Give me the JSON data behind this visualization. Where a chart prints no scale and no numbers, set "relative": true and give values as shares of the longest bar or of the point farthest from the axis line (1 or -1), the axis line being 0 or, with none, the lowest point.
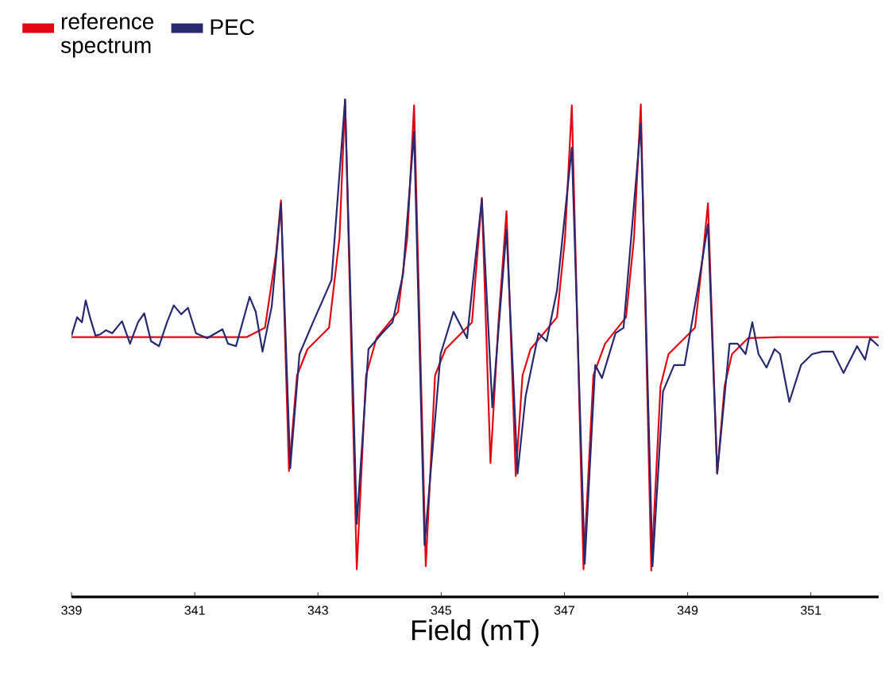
{
  "chart_data": {
    "type": "line",
    "relative": true,
    "xlabel": "Field (mT)",
    "xlim": [
      339,
      352.1
    ],
    "xticks": [
      339,
      341,
      343,
      345,
      347,
      349,
      351
    ],
    "legend": "top left",
    "series": [
      {
        "name": "reference spectrum",
        "color": "#e30613",
        "x": [
          339.0,
          341.84,
          342.14,
          342.32,
          342.4,
          342.53,
          342.66,
          342.83,
          343.18,
          343.35,
          343.44,
          343.63,
          343.78,
          343.95,
          344.3,
          344.45,
          344.56,
          344.75,
          344.9,
          345.07,
          345.5,
          345.66,
          345.8,
          345.93,
          346.06,
          346.21,
          346.32,
          346.45,
          346.88,
          347.01,
          347.12,
          347.31,
          347.47,
          347.66,
          348.0,
          348.13,
          348.24,
          348.41,
          348.56,
          348.69,
          349.12,
          349.25,
          349.33,
          349.48,
          349.6,
          349.72,
          349.98,
          350.5,
          352.1
        ],
        "values": [
          0.522,
          0.522,
          0.541,
          0.69,
          0.797,
          0.253,
          0.445,
          0.498,
          0.541,
          0.722,
          1,
          0.056,
          0.445,
          0.52,
          0.573,
          0.722,
          0.988,
          0.062,
          0.445,
          0.498,
          0.552,
          0.802,
          0.269,
          0.552,
          0.775,
          0.243,
          0.445,
          0.498,
          0.562,
          0.722,
          0.988,
          0.056,
          0.445,
          0.509,
          0.562,
          0.722,
          0.99,
          0.053,
          0.424,
          0.488,
          0.541,
          0.69,
          0.791,
          0.248,
          0.424,
          0.488,
          0.52,
          0.522,
          0.522
        ]
      },
      {
        "name": "PEC",
        "color": "#272a6e",
        "x": [
          339.0,
          339.09,
          339.17,
          339.23,
          339.3,
          339.39,
          339.47,
          339.56,
          339.66,
          339.82,
          339.95,
          340.08,
          340.18,
          340.29,
          340.42,
          340.55,
          340.66,
          340.78,
          340.89,
          341.02,
          341.2,
          341.45,
          341.54,
          341.67,
          341.89,
          341.99,
          342.1,
          342.25,
          342.4,
          342.55,
          342.7,
          342.92,
          343.09,
          343.22,
          343.44,
          343.63,
          343.82,
          344.04,
          344.21,
          344.38,
          344.56,
          344.73,
          344.99,
          345.2,
          345.42,
          345.5,
          345.66,
          345.83,
          346.06,
          346.24,
          346.37,
          346.58,
          346.71,
          346.88,
          347.12,
          347.33,
          347.5,
          347.61,
          347.83,
          347.96,
          348.24,
          348.43,
          348.6,
          348.78,
          348.95,
          349.16,
          349.33,
          349.48,
          349.68,
          349.81,
          349.94,
          350.05,
          350.15,
          350.28,
          350.41,
          350.5,
          350.65,
          350.84,
          351.02,
          351.19,
          351.36,
          351.53,
          351.75,
          351.88,
          351.96,
          352.1
        ],
        "values": [
          0.525,
          0.562,
          0.552,
          0.596,
          0.562,
          0.525,
          0.528,
          0.536,
          0.53,
          0.554,
          0.509,
          0.552,
          0.57,
          0.514,
          0.504,
          0.552,
          0.586,
          0.568,
          0.581,
          0.53,
          0.52,
          0.538,
          0.509,
          0.504,
          0.603,
          0.573,
          0.493,
          0.584,
          0.791,
          0.259,
          0.488,
          0.552,
          0.6,
          0.637,
          0.999,
          0.147,
          0.498,
          0.53,
          0.552,
          0.648,
          0.935,
          0.104,
          0.488,
          0.573,
          0.52,
          0.616,
          0.799,
          0.381,
          0.738,
          0.248,
          0.403,
          0.53,
          0.514,
          0.616,
          0.903,
          0.067,
          0.466,
          0.44,
          0.53,
          0.541,
          0.951,
          0.062,
          0.413,
          0.466,
          0.466,
          0.616,
          0.749,
          0.248,
          0.509,
          0.509,
          0.488,
          0.552,
          0.488,
          0.461,
          0.498,
          0.488,
          0.392,
          0.466,
          0.488,
          0.493,
          0.493,
          0.45,
          0.504,
          0.477,
          0.52,
          0.504
        ]
      }
    ]
  }
}
